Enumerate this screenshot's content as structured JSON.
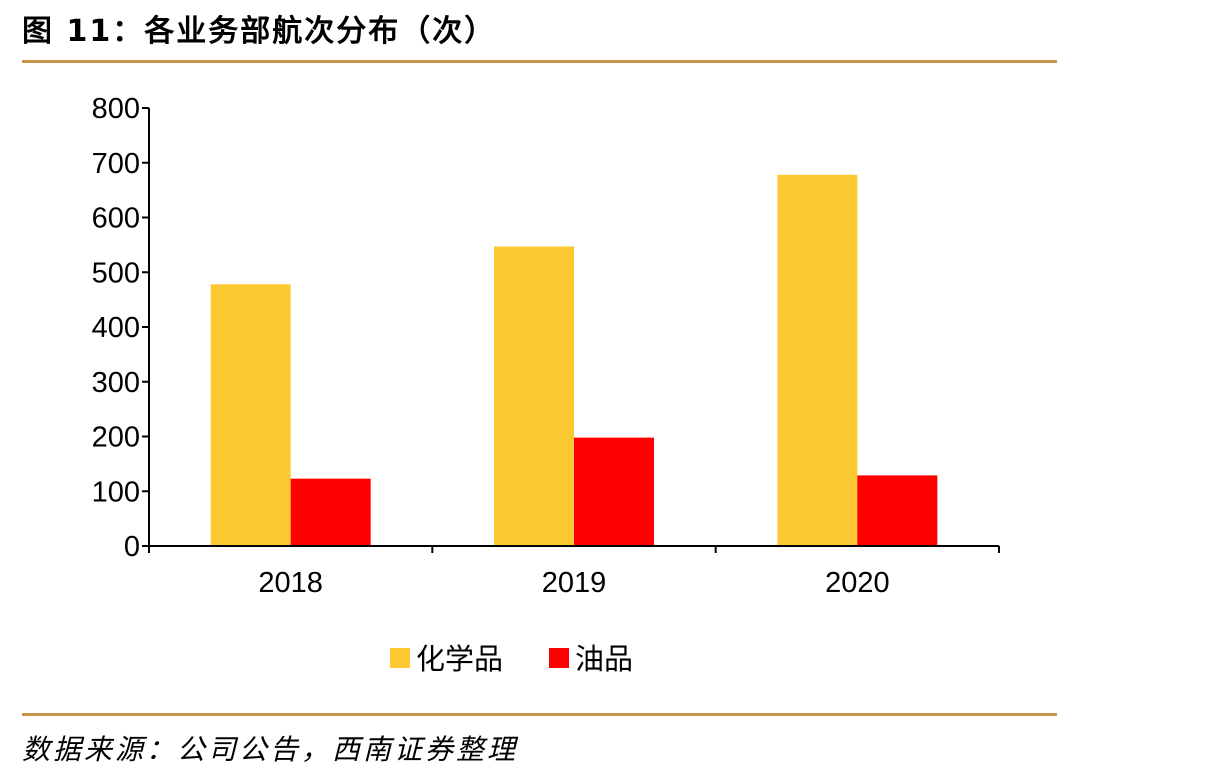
{
  "title": "图 11：各业务部航次分布（次）",
  "source": "数据来源：公司公告，西南证券整理",
  "colors": {
    "rule": "#c8944b",
    "series_1": "#fcc831",
    "series_2": "#ff0000",
    "axis": "#000000"
  },
  "chart_data": {
    "type": "bar",
    "categories": [
      "2018",
      "2019",
      "2020"
    ],
    "series": [
      {
        "name": "化学品",
        "values": [
          478,
          547,
          678
        ],
        "color": "#fcc831"
      },
      {
        "name": "油品",
        "values": [
          123,
          198,
          129
        ],
        "color": "#ff0000"
      }
    ],
    "ylim": [
      0,
      800
    ],
    "yticks": [
      0,
      100,
      200,
      300,
      400,
      500,
      600,
      700,
      800
    ],
    "grid": false,
    "legend": "bottom"
  }
}
